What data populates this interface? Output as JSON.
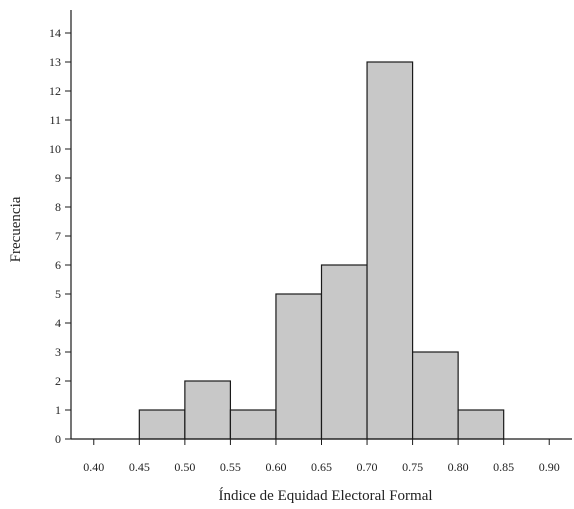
{
  "chart_data": {
    "type": "bar",
    "title": "",
    "xlabel": "Índice de Equidad Electoral Formal",
    "ylabel": "Frecuencia",
    "xlim": [
      0.375,
      0.925
    ],
    "ylim": [
      0,
      14
    ],
    "x_ticks": [
      "0.40",
      "0.45",
      "0.50",
      "0.55",
      "0.60",
      "0.65",
      "0.70",
      "0.75",
      "0.80",
      "0.85",
      "0.90"
    ],
    "x_tick_values": [
      0.4,
      0.45,
      0.5,
      0.55,
      0.6,
      0.65,
      0.7,
      0.75,
      0.8,
      0.85,
      0.9
    ],
    "y_ticks": [
      "0",
      "1",
      "2",
      "3",
      "4",
      "5",
      "6",
      "7",
      "8",
      "9",
      "10",
      "11",
      "12",
      "13",
      "14"
    ],
    "bins": [
      {
        "start": 0.45,
        "end": 0.5,
        "value": 1
      },
      {
        "start": 0.5,
        "end": 0.55,
        "value": 2
      },
      {
        "start": 0.55,
        "end": 0.6,
        "value": 1
      },
      {
        "start": 0.6,
        "end": 0.65,
        "value": 5
      },
      {
        "start": 0.65,
        "end": 0.7,
        "value": 6
      },
      {
        "start": 0.7,
        "end": 0.75,
        "value": 13
      },
      {
        "start": 0.75,
        "end": 0.8,
        "value": 3
      },
      {
        "start": 0.8,
        "end": 0.85,
        "value": 1
      }
    ],
    "grid": false,
    "bar_color": "#c8c8c8"
  }
}
